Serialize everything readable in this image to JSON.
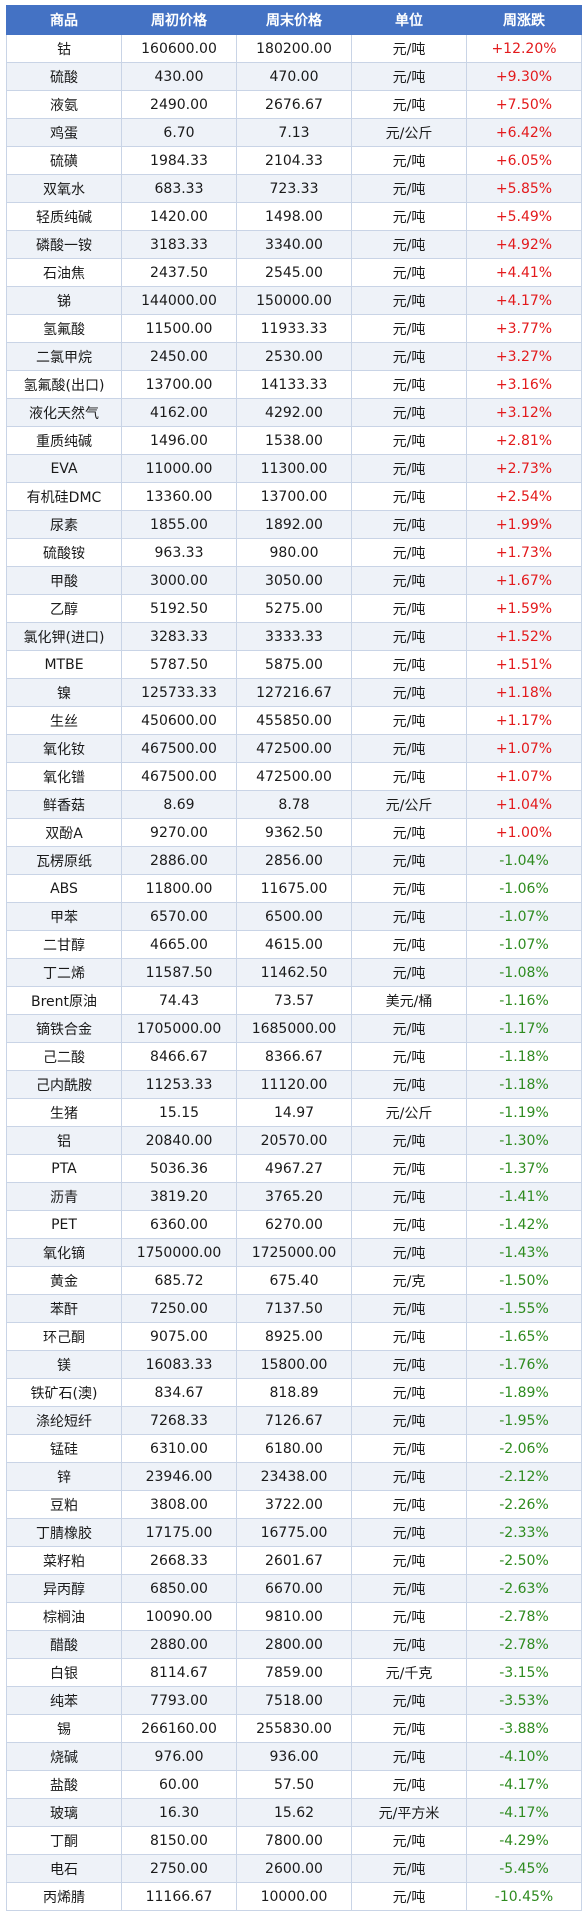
{
  "table": {
    "headers": [
      "商品",
      "周初价格",
      "周末价格",
      "单位",
      "周涨跌"
    ],
    "rows": [
      [
        "钴",
        "160600.00",
        "180200.00",
        "元/吨",
        "+12.20%"
      ],
      [
        "硫酸",
        "430.00",
        "470.00",
        "元/吨",
        "+9.30%"
      ],
      [
        "液氨",
        "2490.00",
        "2676.67",
        "元/吨",
        "+7.50%"
      ],
      [
        "鸡蛋",
        "6.70",
        "7.13",
        "元/公斤",
        "+6.42%"
      ],
      [
        "硫磺",
        "1984.33",
        "2104.33",
        "元/吨",
        "+6.05%"
      ],
      [
        "双氧水",
        "683.33",
        "723.33",
        "元/吨",
        "+5.85%"
      ],
      [
        "轻质纯碱",
        "1420.00",
        "1498.00",
        "元/吨",
        "+5.49%"
      ],
      [
        "磷酸一铵",
        "3183.33",
        "3340.00",
        "元/吨",
        "+4.92%"
      ],
      [
        "石油焦",
        "2437.50",
        "2545.00",
        "元/吨",
        "+4.41%"
      ],
      [
        "锑",
        "144000.00",
        "150000.00",
        "元/吨",
        "+4.17%"
      ],
      [
        "氢氟酸",
        "11500.00",
        "11933.33",
        "元/吨",
        "+3.77%"
      ],
      [
        "二氯甲烷",
        "2450.00",
        "2530.00",
        "元/吨",
        "+3.27%"
      ],
      [
        "氢氟酸(出口)",
        "13700.00",
        "14133.33",
        "元/吨",
        "+3.16%"
      ],
      [
        "液化天然气",
        "4162.00",
        "4292.00",
        "元/吨",
        "+3.12%"
      ],
      [
        "重质纯碱",
        "1496.00",
        "1538.00",
        "元/吨",
        "+2.81%"
      ],
      [
        "EVA",
        "11000.00",
        "11300.00",
        "元/吨",
        "+2.73%"
      ],
      [
        "有机硅DMC",
        "13360.00",
        "13700.00",
        "元/吨",
        "+2.54%"
      ],
      [
        "尿素",
        "1855.00",
        "1892.00",
        "元/吨",
        "+1.99%"
      ],
      [
        "硫酸铵",
        "963.33",
        "980.00",
        "元/吨",
        "+1.73%"
      ],
      [
        "甲酸",
        "3000.00",
        "3050.00",
        "元/吨",
        "+1.67%"
      ],
      [
        "乙醇",
        "5192.50",
        "5275.00",
        "元/吨",
        "+1.59%"
      ],
      [
        "氯化钾(进口)",
        "3283.33",
        "3333.33",
        "元/吨",
        "+1.52%"
      ],
      [
        "MTBE",
        "5787.50",
        "5875.00",
        "元/吨",
        "+1.51%"
      ],
      [
        "镍",
        "125733.33",
        "127216.67",
        "元/吨",
        "+1.18%"
      ],
      [
        "生丝",
        "450600.00",
        "455850.00",
        "元/吨",
        "+1.17%"
      ],
      [
        "氧化钕",
        "467500.00",
        "472500.00",
        "元/吨",
        "+1.07%"
      ],
      [
        "氧化镨",
        "467500.00",
        "472500.00",
        "元/吨",
        "+1.07%"
      ],
      [
        "鲜香菇",
        "8.69",
        "8.78",
        "元/公斤",
        "+1.04%"
      ],
      [
        "双酚A",
        "9270.00",
        "9362.50",
        "元/吨",
        "+1.00%"
      ],
      [
        "瓦楞原纸",
        "2886.00",
        "2856.00",
        "元/吨",
        "-1.04%"
      ],
      [
        "ABS",
        "11800.00",
        "11675.00",
        "元/吨",
        "-1.06%"
      ],
      [
        "甲苯",
        "6570.00",
        "6500.00",
        "元/吨",
        "-1.07%"
      ],
      [
        "二甘醇",
        "4665.00",
        "4615.00",
        "元/吨",
        "-1.07%"
      ],
      [
        "丁二烯",
        "11587.50",
        "11462.50",
        "元/吨",
        "-1.08%"
      ],
      [
        "Brent原油",
        "74.43",
        "73.57",
        "美元/桶",
        "-1.16%"
      ],
      [
        "镝铁合金",
        "1705000.00",
        "1685000.00",
        "元/吨",
        "-1.17%"
      ],
      [
        "己二酸",
        "8466.67",
        "8366.67",
        "元/吨",
        "-1.18%"
      ],
      [
        "己内酰胺",
        "11253.33",
        "11120.00",
        "元/吨",
        "-1.18%"
      ],
      [
        "生猪",
        "15.15",
        "14.97",
        "元/公斤",
        "-1.19%"
      ],
      [
        "铝",
        "20840.00",
        "20570.00",
        "元/吨",
        "-1.30%"
      ],
      [
        "PTA",
        "5036.36",
        "4967.27",
        "元/吨",
        "-1.37%"
      ],
      [
        "沥青",
        "3819.20",
        "3765.20",
        "元/吨",
        "-1.41%"
      ],
      [
        "PET",
        "6360.00",
        "6270.00",
        "元/吨",
        "-1.42%"
      ],
      [
        "氧化镝",
        "1750000.00",
        "1725000.00",
        "元/吨",
        "-1.43%"
      ],
      [
        "黄金",
        "685.72",
        "675.40",
        "元/克",
        "-1.50%"
      ],
      [
        "苯酐",
        "7250.00",
        "7137.50",
        "元/吨",
        "-1.55%"
      ],
      [
        "环己酮",
        "9075.00",
        "8925.00",
        "元/吨",
        "-1.65%"
      ],
      [
        "镁",
        "16083.33",
        "15800.00",
        "元/吨",
        "-1.76%"
      ],
      [
        "铁矿石(澳)",
        "834.67",
        "818.89",
        "元/吨",
        "-1.89%"
      ],
      [
        "涤纶短纤",
        "7268.33",
        "7126.67",
        "元/吨",
        "-1.95%"
      ],
      [
        "锰硅",
        "6310.00",
        "6180.00",
        "元/吨",
        "-2.06%"
      ],
      [
        "锌",
        "23946.00",
        "23438.00",
        "元/吨",
        "-2.12%"
      ],
      [
        "豆粕",
        "3808.00",
        "3722.00",
        "元/吨",
        "-2.26%"
      ],
      [
        "丁腈橡胶",
        "17175.00",
        "16775.00",
        "元/吨",
        "-2.33%"
      ],
      [
        "菜籽粕",
        "2668.33",
        "2601.67",
        "元/吨",
        "-2.50%"
      ],
      [
        "异丙醇",
        "6850.00",
        "6670.00",
        "元/吨",
        "-2.63%"
      ],
      [
        "棕榈油",
        "10090.00",
        "9810.00",
        "元/吨",
        "-2.78%"
      ],
      [
        "醋酸",
        "2880.00",
        "2800.00",
        "元/吨",
        "-2.78%"
      ],
      [
        "白银",
        "8114.67",
        "7859.00",
        "元/千克",
        "-3.15%"
      ],
      [
        "纯苯",
        "7793.00",
        "7518.00",
        "元/吨",
        "-3.53%"
      ],
      [
        "锡",
        "266160.00",
        "255830.00",
        "元/吨",
        "-3.88%"
      ],
      [
        "烧碱",
        "976.00",
        "936.00",
        "元/吨",
        "-4.10%"
      ],
      [
        "盐酸",
        "60.00",
        "57.50",
        "元/吨",
        "-4.17%"
      ],
      [
        "玻璃",
        "16.30",
        "15.62",
        "元/平方米",
        "-4.17%"
      ],
      [
        "丁酮",
        "8150.00",
        "7800.00",
        "元/吨",
        "-4.29%"
      ],
      [
        "电石",
        "2750.00",
        "2600.00",
        "元/吨",
        "-5.45%"
      ],
      [
        "丙烯腈",
        "11166.67",
        "10000.00",
        "元/吨",
        "-10.45%"
      ]
    ]
  },
  "colors": {
    "header_bg": "#4472c4",
    "up": "#e31a1c",
    "down": "#2e8b1f"
  }
}
